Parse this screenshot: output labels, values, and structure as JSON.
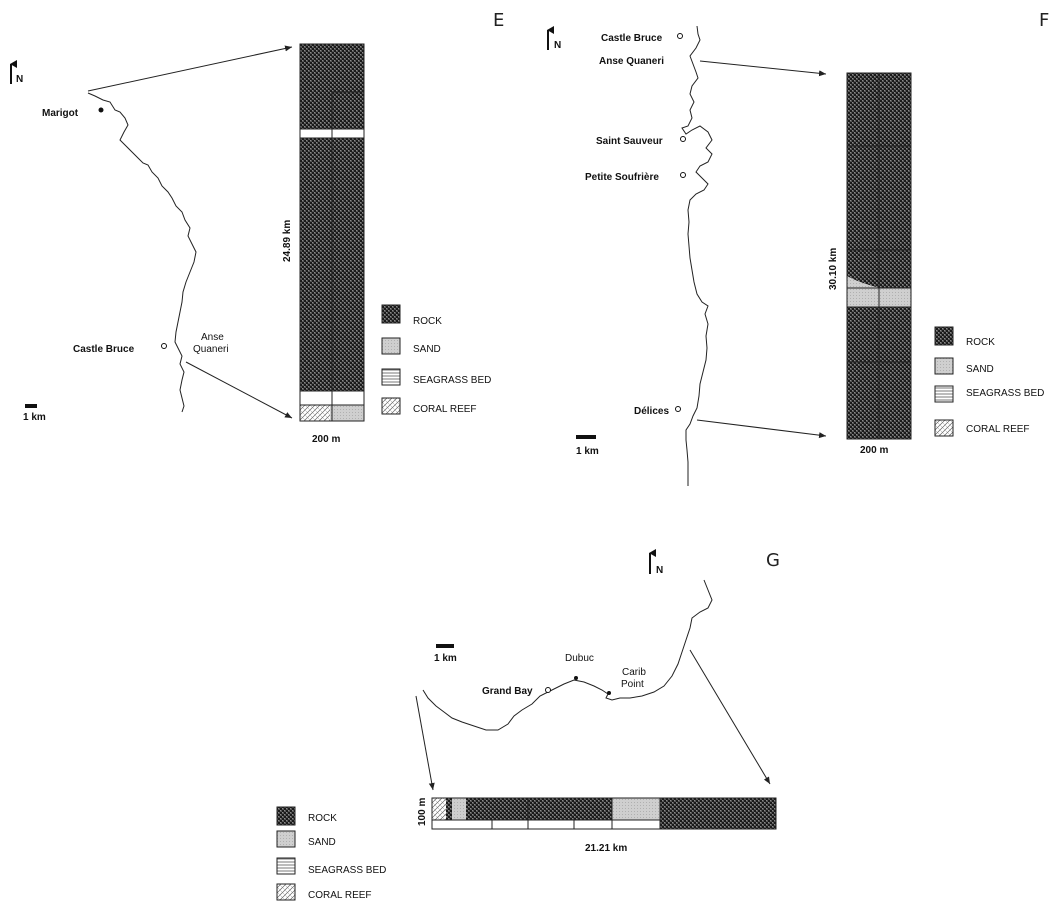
{
  "legend": {
    "rock": "ROCK",
    "sand": "SAND",
    "seagrass": "SEAGRASS BED",
    "coral": "CORAL REEF"
  },
  "north_label": "N",
  "scale_label": "1 km",
  "panels": {
    "E": {
      "letter": "E",
      "places": {
        "marigot": "Marigot",
        "castle_bruce": "Castle Bruce",
        "anse_quaneri_1": "Anse",
        "anse_quaneri_2": "Quaneri"
      },
      "strip_length": "24.89 km",
      "strip_width": "200 m"
    },
    "F": {
      "letter": "F",
      "places": {
        "castle_bruce": "Castle Bruce",
        "anse_quaneri": "Anse Quaneri",
        "saint_sauveur": "Saint Sauveur",
        "petite_soufriere": "Petite Soufrière",
        "delices": "Délices"
      },
      "strip_length": "30.10 km",
      "strip_width": "200 m"
    },
    "G": {
      "letter": "G",
      "places": {
        "grand_bay": "Grand Bay",
        "dubuc": "Dubuc",
        "carib_point_1": "Carib",
        "carib_point_2": "Point"
      },
      "strip_length": "21.21 km",
      "strip_width": "100 m"
    }
  },
  "colors": {
    "rock": "#3a3a3a",
    "sand": "#c8c8c8",
    "line": "#222222"
  }
}
